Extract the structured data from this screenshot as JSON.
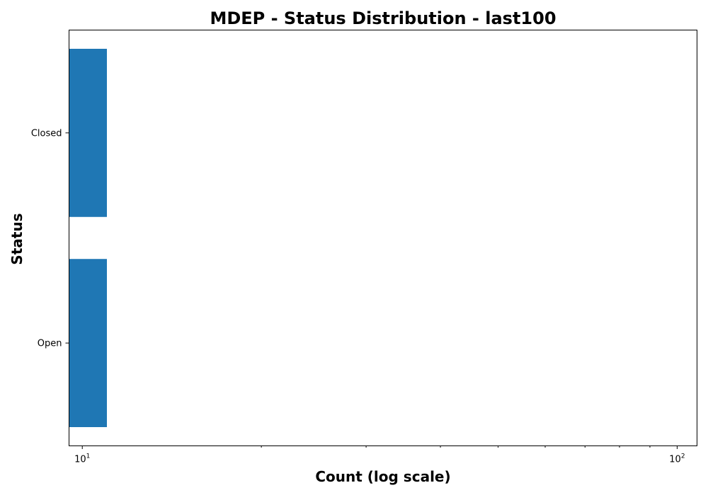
{
  "chart_data": {
    "type": "bar",
    "orientation": "horizontal",
    "title": "MDEP - Status Distribution - last100",
    "xlabel": "Count (log scale)",
    "ylabel": "Status",
    "x_scale": "log",
    "xlim": [
      9.5,
      108
    ],
    "categories": [
      "Open",
      "Closed"
    ],
    "values": [
      11,
      11
    ],
    "bar_color": "#1f77b4",
    "x_major_ticks": [
      {
        "value": 10,
        "base": "10",
        "exponent": "1"
      },
      {
        "value": 100,
        "base": "10",
        "exponent": "2"
      }
    ],
    "x_minor_ticks": [
      20,
      30,
      40,
      50,
      60,
      70,
      80,
      90
    ],
    "grid": false,
    "legend": "none"
  }
}
